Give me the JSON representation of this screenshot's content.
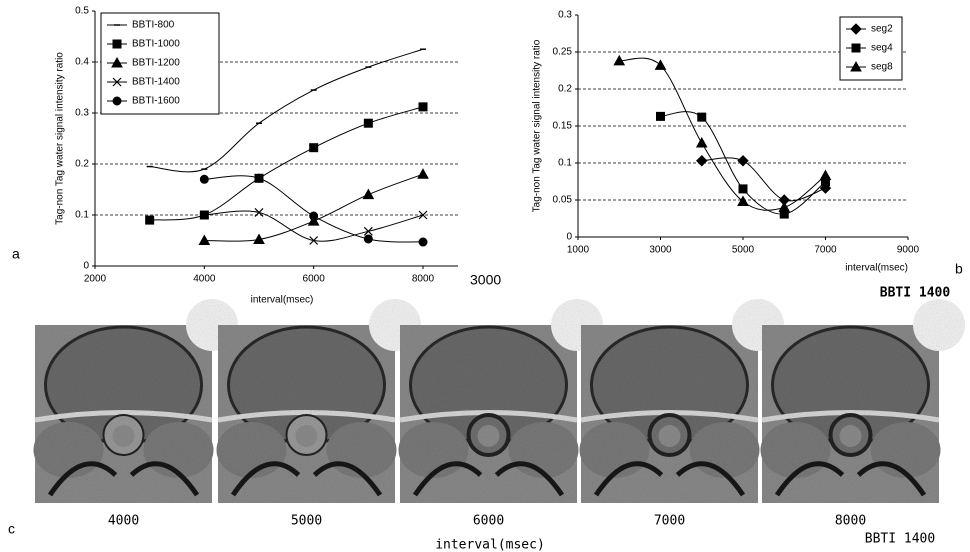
{
  "chart_data": [
    {
      "type": "line",
      "xlabel": "interval(msec)",
      "ylabel": "Tag-non Tag water signal intensity ratio",
      "xlim": [
        2000,
        8640
      ],
      "xticks": [
        2000,
        4000,
        6000,
        8000
      ],
      "ylim": [
        0,
        0.5
      ],
      "yticks": [
        0,
        0.1,
        0.2,
        0.3,
        0.4,
        0.5
      ],
      "grid": true,
      "legend": "upper left",
      "series": [
        {
          "name": "BBTI-800",
          "color": "#000000",
          "marker": "dash",
          "x": [
            3000,
            4000,
            5000,
            6000,
            7000,
            8000
          ],
          "values": [
            0.195,
            0.19,
            0.28,
            0.345,
            0.39,
            0.425
          ]
        },
        {
          "name": "BBTI-1000",
          "color": "#000000",
          "marker": "square",
          "x": [
            3000,
            4000,
            5000,
            6000,
            7000,
            8000
          ],
          "values": [
            0.09,
            0.1,
            0.172,
            0.232,
            0.28,
            0.312
          ]
        },
        {
          "name": "BBTI-1200",
          "color": "#000000",
          "marker": "triangle",
          "x": [
            4000,
            5000,
            6000,
            7000,
            8000
          ],
          "values": [
            0.05,
            0.052,
            0.088,
            0.14,
            0.18
          ]
        },
        {
          "name": "BBTI-1400",
          "color": "#000000",
          "marker": "x",
          "x": [
            4000,
            5000,
            6000,
            7000,
            8000
          ],
          "values": [
            0.1,
            0.105,
            0.05,
            0.068,
            0.1
          ]
        },
        {
          "name": "BBTI-1600",
          "color": "#000000",
          "marker": "circle",
          "x": [
            4000,
            5000,
            6000,
            7000,
            8000
          ],
          "values": [
            0.17,
            0.172,
            0.098,
            0.053,
            0.047
          ]
        }
      ]
    },
    {
      "type": "line",
      "xlabel": "interval(msec)",
      "ylabel": "Tag-non Tag water signal intensity ratio",
      "xlim": [
        1000,
        9000
      ],
      "xticks": [
        1000,
        3000,
        5000,
        7000,
        9000
      ],
      "ylim": [
        0,
        0.3
      ],
      "yticks": [
        0,
        0.05,
        0.1,
        0.15,
        0.2,
        0.25,
        0.3
      ],
      "grid": true,
      "legend": "upper right",
      "series": [
        {
          "name": "seg2",
          "color": "#000000",
          "marker": "diamond",
          "x": [
            4000,
            5000,
            6000,
            7000
          ],
          "values": [
            0.103,
            0.103,
            0.05,
            0.066
          ]
        },
        {
          "name": "seg4",
          "color": "#000000",
          "marker": "square",
          "x": [
            3000,
            4000,
            5000,
            6000,
            7000
          ],
          "values": [
            0.163,
            0.162,
            0.065,
            0.031,
            0.075
          ]
        },
        {
          "name": "seg8",
          "color": "#000000",
          "marker": "triangle",
          "x": [
            2000,
            3000,
            4000,
            5000,
            6000,
            7000
          ],
          "values": [
            0.238,
            0.232,
            0.127,
            0.048,
            0.04,
            0.083
          ]
        }
      ]
    }
  ],
  "panels": {
    "a": "a",
    "b": "b",
    "c": "c",
    "stray": "3000",
    "b_caption": "BBTI 1400"
  },
  "images": {
    "captions": [
      "4000",
      "5000",
      "6000",
      "7000",
      "8000"
    ],
    "xlabel": "interval(msec)",
    "caption": "BBTI 1400"
  }
}
